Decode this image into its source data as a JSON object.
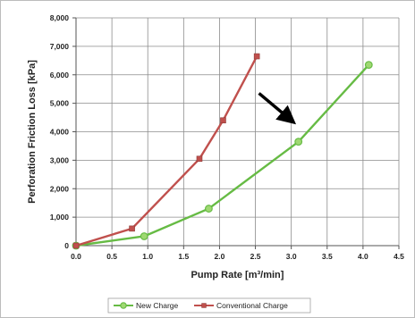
{
  "chart_data": {
    "type": "line",
    "xlabel": "Pump Rate [m³/min]",
    "ylabel": "Perforation Friction Loss [kPa]",
    "xlim": [
      0,
      4.5
    ],
    "ylim": [
      0,
      8000
    ],
    "x_ticks": [
      0.0,
      0.5,
      1.0,
      1.5,
      2.0,
      2.5,
      3.0,
      3.5,
      4.0,
      4.5
    ],
    "x_tick_labels": [
      "0.0",
      "0.5",
      "1.0",
      "1.5",
      "2.0",
      "2.5",
      "3.0",
      "3.5",
      "4.0",
      "4.5"
    ],
    "y_ticks": [
      0,
      1000,
      2000,
      3000,
      4000,
      5000,
      6000,
      7000,
      8000
    ],
    "y_tick_labels": [
      "0",
      "1,000",
      "2,000",
      "3,000",
      "4,000",
      "5,000",
      "6,000",
      "7,000",
      "8,000"
    ],
    "grid": true,
    "legend_position": "bottom",
    "series": [
      {
        "name": "New Charge",
        "color": "#66bb44",
        "marker": "circle",
        "x": [
          0.0,
          0.95,
          1.85,
          3.1,
          4.08
        ],
        "y": [
          0,
          330,
          1300,
          3650,
          6350
        ]
      },
      {
        "name": "Conventional Charge",
        "color": "#c0504d",
        "marker": "square",
        "x": [
          0.0,
          0.78,
          1.72,
          2.05,
          2.52
        ],
        "y": [
          0,
          600,
          3050,
          4400,
          6650
        ]
      }
    ],
    "annotations": [
      {
        "type": "arrow",
        "color": "#000000",
        "from": [
          2.55,
          5350
        ],
        "to": [
          3.0,
          4400
        ]
      }
    ]
  }
}
